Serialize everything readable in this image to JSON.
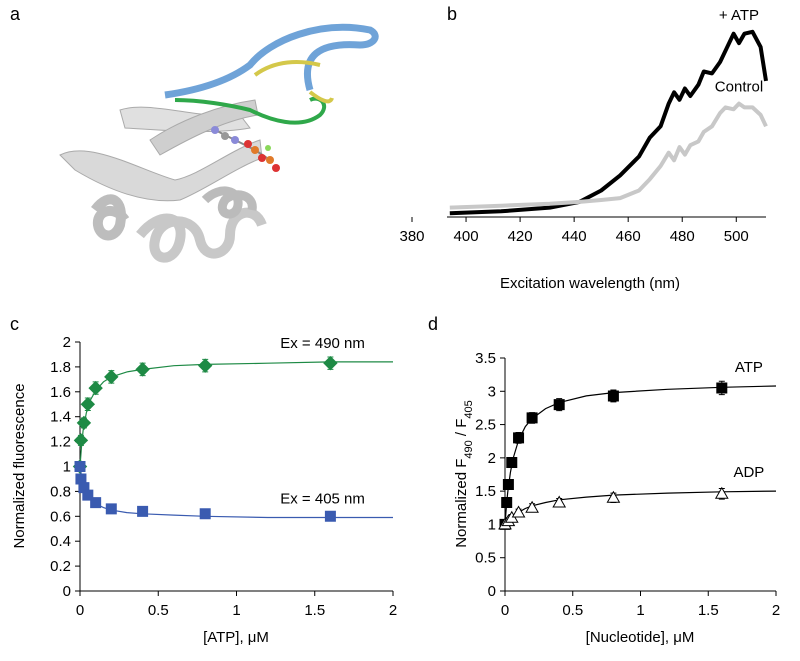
{
  "panel_a": {
    "label": "a"
  },
  "chart_data": [
    {
      "type": "line",
      "label": "b",
      "xlabel": "Excitation wavelength (nm)",
      "xlim": [
        380,
        511
      ],
      "xticks": [
        380,
        400,
        420,
        440,
        460,
        480,
        500
      ],
      "ylim": [
        0,
        1
      ],
      "series": [
        {
          "name": "+ ATP",
          "color": "#000000",
          "x": [
            394,
            413,
            431,
            442,
            450,
            457,
            464,
            468,
            472,
            475,
            477,
            479,
            481,
            483,
            486,
            488,
            491,
            494,
            496,
            499,
            501,
            503,
            506,
            509,
            511
          ],
          "values": [
            0.02,
            0.03,
            0.05,
            0.08,
            0.14,
            0.22,
            0.32,
            0.42,
            0.48,
            0.6,
            0.66,
            0.62,
            0.68,
            0.64,
            0.7,
            0.77,
            0.76,
            0.82,
            0.88,
            0.97,
            0.92,
            0.97,
            0.98,
            0.9,
            0.72
          ]
        },
        {
          "name": "Control",
          "color": "#c8c8c8",
          "x": [
            394,
            413,
            431,
            442,
            450,
            457,
            464,
            468,
            472,
            475,
            477,
            479,
            481,
            483,
            486,
            488,
            491,
            494,
            496,
            499,
            501,
            503,
            506,
            509,
            511
          ],
          "values": [
            0.05,
            0.06,
            0.07,
            0.08,
            0.09,
            0.1,
            0.14,
            0.2,
            0.27,
            0.34,
            0.3,
            0.37,
            0.33,
            0.38,
            0.4,
            0.45,
            0.48,
            0.55,
            0.58,
            0.57,
            0.6,
            0.58,
            0.58,
            0.54,
            0.48
          ]
        }
      ]
    },
    {
      "type": "scatter",
      "label": "c",
      "xlabel": "[ATP], μM",
      "ylabel": [
        "Normalized fluorescence"
      ],
      "xlim": [
        0,
        2
      ],
      "xticks": [
        0,
        0.5,
        1,
        1.5,
        2
      ],
      "ylim": [
        0,
        2
      ],
      "yticks": [
        0,
        0.2,
        0.4,
        0.6,
        0.8,
        1,
        1.2,
        1.4,
        1.6,
        1.8,
        2
      ],
      "series": [
        {
          "name": "Ex = 490 nm",
          "color": "#1e8a45",
          "marker": "diamond",
          "filled": true,
          "x": [
            0,
            0.006,
            0.025,
            0.05,
            0.1,
            0.2,
            0.4,
            0.8,
            1.6
          ],
          "values": [
            1.0,
            1.21,
            1.35,
            1.5,
            1.63,
            1.72,
            1.78,
            1.81,
            1.83
          ],
          "errors": [
            0.03,
            0.04,
            0.04,
            0.05,
            0.05,
            0.05,
            0.05,
            0.05,
            0.05
          ],
          "fit": {
            "x": [
              0,
              0.01,
              0.02,
              0.04,
              0.06,
              0.1,
              0.15,
              0.2,
              0.3,
              0.4,
              0.6,
              0.8,
              1.2,
              1.6,
              2
            ],
            "values": [
              1.0,
              1.17,
              1.29,
              1.43,
              1.52,
              1.61,
              1.68,
              1.72,
              1.76,
              1.78,
              1.81,
              1.82,
              1.83,
              1.84,
              1.84
            ]
          }
        },
        {
          "name": "Ex = 405 nm",
          "color": "#3a5bb0",
          "marker": "square",
          "filled": true,
          "x": [
            0,
            0.006,
            0.025,
            0.05,
            0.1,
            0.2,
            0.4,
            0.8,
            1.6
          ],
          "values": [
            1.0,
            0.9,
            0.83,
            0.77,
            0.71,
            0.66,
            0.64,
            0.62,
            0.6
          ],
          "errors": [
            0.02,
            0.02,
            0.02,
            0.02,
            0.02,
            0.02,
            0.02,
            0.02,
            0.02
          ],
          "fit": {
            "x": [
              0,
              0.01,
              0.02,
              0.04,
              0.06,
              0.1,
              0.15,
              0.2,
              0.3,
              0.4,
              0.6,
              0.8,
              1.2,
              1.6,
              2
            ],
            "values": [
              1,
              0.92,
              0.86,
              0.79,
              0.75,
              0.7,
              0.67,
              0.65,
              0.63,
              0.62,
              0.61,
              0.6,
              0.59,
              0.59,
              0.59
            ]
          }
        }
      ]
    },
    {
      "type": "scatter",
      "label": "d",
      "xlabel": "[Nucleotide], μM",
      "ylabel": [
        "Normalized F",
        "490",
        " / F",
        "405"
      ],
      "xlim": [
        0,
        2
      ],
      "xticks": [
        0,
        0.5,
        1,
        1.5,
        2
      ],
      "ylim": [
        0,
        3.5
      ],
      "yticks": [
        0,
        0.5,
        1,
        1.5,
        2,
        2.5,
        3,
        3.5
      ],
      "series": [
        {
          "name": "ATP",
          "color": "#000000",
          "marker": "square",
          "filled": true,
          "x": [
            0,
            0.0125,
            0.025,
            0.05,
            0.1,
            0.2,
            0.4,
            0.8,
            1.6
          ],
          "values": [
            1.0,
            1.33,
            1.6,
            1.93,
            2.3,
            2.6,
            2.8,
            2.93,
            3.05
          ],
          "errors": [
            0.05,
            0.06,
            0.06,
            0.07,
            0.08,
            0.08,
            0.09,
            0.09,
            0.1
          ],
          "fit": {
            "x": [
              0,
              0.01,
              0.02,
              0.04,
              0.06,
              0.1,
              0.15,
              0.2,
              0.3,
              0.4,
              0.6,
              0.8,
              1.2,
              1.6,
              2
            ],
            "values": [
              1,
              1.27,
              1.48,
              1.78,
              1.99,
              2.26,
              2.47,
              2.59,
              2.74,
              2.83,
              2.93,
              2.98,
              3.03,
              3.06,
              3.08
            ]
          }
        },
        {
          "name": "ADP",
          "color": "#000000",
          "marker": "triangle",
          "filled": false,
          "x": [
            0,
            0.025,
            0.05,
            0.1,
            0.2,
            0.4,
            0.8,
            1.6
          ],
          "values": [
            1.0,
            1.05,
            1.1,
            1.18,
            1.25,
            1.33,
            1.4,
            1.46
          ],
          "errors": [
            0.04,
            0.05,
            0.05,
            0.05,
            0.06,
            0.06,
            0.07,
            0.08
          ],
          "fit": {
            "x": [
              0,
              0.01,
              0.02,
              0.04,
              0.06,
              0.1,
              0.15,
              0.2,
              0.3,
              0.4,
              0.6,
              0.8,
              1.2,
              1.6,
              2
            ],
            "values": [
              1,
              1.03,
              1.05,
              1.09,
              1.13,
              1.18,
              1.24,
              1.28,
              1.33,
              1.37,
              1.41,
              1.44,
              1.47,
              1.49,
              1.5
            ]
          }
        }
      ]
    }
  ]
}
